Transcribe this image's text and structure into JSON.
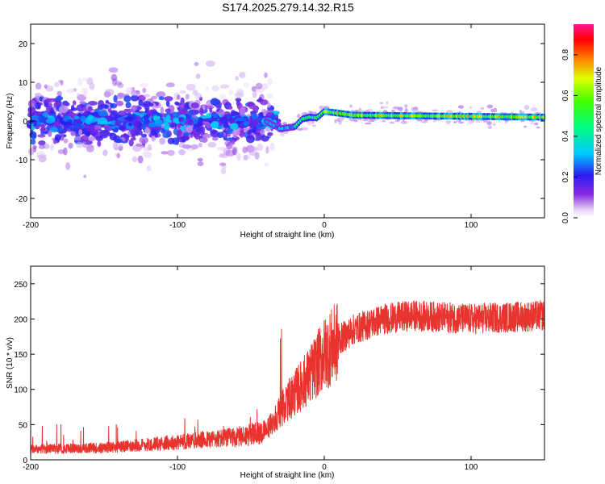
{
  "title": "S174.2025.279.14.32.R15",
  "chart_data": [
    {
      "type": "heatmap",
      "xlabel": "Height of straight line (km)",
      "ylabel": "Frequency (Hz)",
      "xlim": [
        -200,
        150
      ],
      "ylim": [
        -25,
        25
      ],
      "xticks": [
        -200,
        -100,
        0,
        100
      ],
      "xtick_labels": [
        "-200",
        "-100",
        "0",
        "100"
      ],
      "yticks": [
        -20,
        -10,
        0,
        10,
        20
      ],
      "ytick_labels": [
        "-20",
        "-10",
        "0",
        "10",
        "20"
      ],
      "colorbar": {
        "label": "Normalized spectral amplitude",
        "range": [
          0,
          0.95
        ],
        "ticks": [
          0,
          0.2,
          0.4,
          0.6,
          0.8
        ],
        "tick_labels": [
          "0.0",
          "0.2",
          "0.4",
          "0.6",
          "0.8"
        ]
      },
      "ridge": [
        {
          "x": -200,
          "f": 0
        },
        {
          "x": -40,
          "f": 0
        },
        {
          "x": -30,
          "f": -2
        },
        {
          "x": -20,
          "f": -1.5
        },
        {
          "x": -15,
          "f": 0.5
        },
        {
          "x": -10,
          "f": 1
        },
        {
          "x": -5,
          "f": 0.8
        },
        {
          "x": 0,
          "f": 2.5
        },
        {
          "x": 10,
          "f": 2
        },
        {
          "x": 20,
          "f": 1.5
        },
        {
          "x": 150,
          "f": 1
        }
      ]
    },
    {
      "type": "line",
      "xlabel": "Height of straight line (km)",
      "ylabel": "SNR (10 * v/v)",
      "xlim": [
        -200,
        150
      ],
      "ylim": [
        0,
        275
      ],
      "xticks": [
        -200,
        -100,
        0,
        100
      ],
      "xtick_labels": [
        "-200",
        "-100",
        "0",
        "100"
      ],
      "yticks": [
        0,
        50,
        100,
        150,
        200,
        250
      ],
      "ytick_labels": [
        "0",
        "50",
        "100",
        "150",
        "200",
        "250"
      ],
      "color": "#e8342e",
      "trend": [
        {
          "x": -200,
          "snr": 15
        },
        {
          "x": -150,
          "snr": 17
        },
        {
          "x": -100,
          "snr": 25
        },
        {
          "x": -60,
          "snr": 32
        },
        {
          "x": -40,
          "snr": 40
        },
        {
          "x": -30,
          "snr": 70
        },
        {
          "x": -20,
          "snr": 95
        },
        {
          "x": -10,
          "snr": 120
        },
        {
          "x": 0,
          "snr": 150
        },
        {
          "x": 10,
          "snr": 170
        },
        {
          "x": 20,
          "snr": 185
        },
        {
          "x": 40,
          "snr": 200
        },
        {
          "x": 60,
          "snr": 205
        },
        {
          "x": 100,
          "snr": 200
        },
        {
          "x": 150,
          "snr": 205
        }
      ]
    }
  ]
}
